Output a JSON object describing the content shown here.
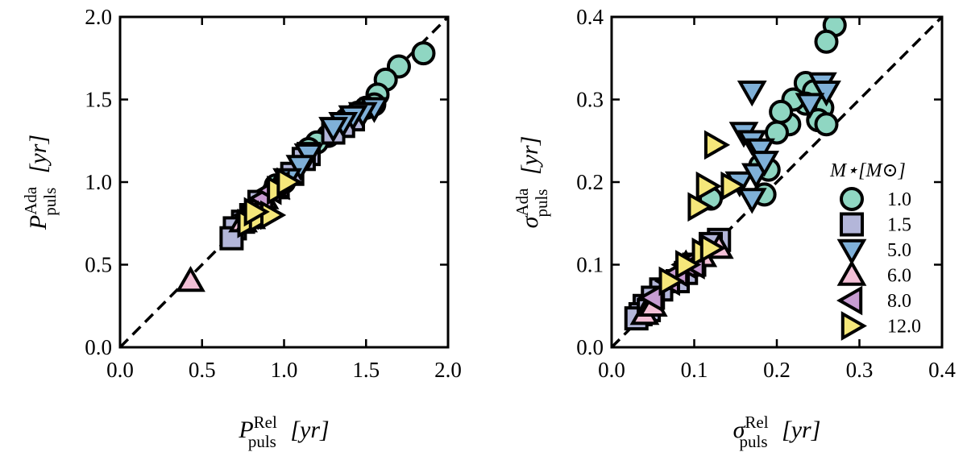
{
  "chart_data": [
    {
      "type": "scatter",
      "panel": "left",
      "xlim": [
        0.0,
        2.0
      ],
      "ylim": [
        0.0,
        2.0
      ],
      "xticks": [
        "0.0",
        "0.5",
        "1.0",
        "1.5",
        "2.0"
      ],
      "yticks": [
        "0.0",
        "0.5",
        "1.0",
        "1.5",
        "2.0"
      ],
      "xlabel": {
        "base": "P",
        "sup": "Rel",
        "sub": "puls",
        "unit": "[yr]"
      },
      "ylabel": {
        "base": "P",
        "sup": "Ada",
        "sub": "puls",
        "unit": "[yr]"
      },
      "reference_line": "y = x",
      "series": [
        {
          "name": "1.0",
          "marker": "circle",
          "color": "#8fd6c2",
          "points": [
            [
              1.85,
              1.78
            ],
            [
              1.7,
              1.7
            ],
            [
              1.62,
              1.62
            ],
            [
              1.57,
              1.53
            ],
            [
              1.55,
              1.47
            ],
            [
              1.5,
              1.45
            ],
            [
              1.45,
              1.42
            ],
            [
              1.38,
              1.38
            ],
            [
              1.32,
              1.32
            ],
            [
              1.27,
              1.28
            ],
            [
              1.2,
              1.24
            ],
            [
              1.15,
              1.2
            ],
            [
              1.0,
              1.0
            ],
            [
              0.95,
              0.98
            ]
          ]
        },
        {
          "name": "1.5",
          "marker": "square",
          "color": "#b3b6d9",
          "points": [
            [
              1.42,
              1.38
            ],
            [
              1.36,
              1.34
            ],
            [
              1.3,
              1.3
            ],
            [
              1.15,
              1.17
            ],
            [
              1.12,
              1.14
            ],
            [
              1.05,
              1.05
            ],
            [
              0.85,
              0.88
            ],
            [
              0.8,
              0.8
            ],
            [
              0.75,
              0.76
            ],
            [
              0.7,
              0.72
            ],
            [
              0.68,
              0.66
            ]
          ]
        },
        {
          "name": "5.0",
          "marker": "triangle-down",
          "color": "#7fb0d8",
          "points": [
            [
              1.55,
              1.45
            ],
            [
              1.48,
              1.42
            ],
            [
              1.42,
              1.4
            ],
            [
              1.36,
              1.36
            ],
            [
              1.3,
              1.33
            ],
            [
              1.15,
              1.17
            ],
            [
              1.1,
              1.1
            ],
            [
              1.02,
              1.02
            ]
          ]
        },
        {
          "name": "6.0",
          "marker": "triangle-up",
          "color": "#f2bfd6",
          "points": [
            [
              0.43,
              0.4
            ],
            [
              0.75,
              0.76
            ],
            [
              0.8,
              0.78
            ],
            [
              0.88,
              0.9
            ],
            [
              0.95,
              0.96
            ]
          ]
        },
        {
          "name": "8.0",
          "marker": "triangle-left",
          "color": "#c79cd2",
          "points": [
            [
              0.82,
              0.85
            ],
            [
              0.87,
              0.9
            ],
            [
              0.92,
              0.95
            ],
            [
              0.97,
              0.98
            ],
            [
              0.78,
              0.8
            ]
          ]
        },
        {
          "name": "12.0",
          "marker": "triangle-right",
          "color": "#f5e77a",
          "points": [
            [
              0.78,
              0.75
            ],
            [
              0.85,
              0.78
            ],
            [
              0.92,
              0.8
            ],
            [
              0.96,
              0.95
            ],
            [
              1.02,
              1.0
            ],
            [
              0.82,
              0.82
            ]
          ]
        }
      ]
    },
    {
      "type": "scatter",
      "panel": "right",
      "xlim": [
        0.0,
        0.4
      ],
      "ylim": [
        0.0,
        0.4
      ],
      "xticks": [
        "0.0",
        "0.1",
        "0.2",
        "0.3",
        "0.4"
      ],
      "yticks": [
        "0.0",
        "0.1",
        "0.2",
        "0.3",
        "0.4"
      ],
      "xlabel": {
        "base": "σ",
        "sup": "Rel",
        "sub": "puls",
        "unit": "[yr]"
      },
      "ylabel": {
        "base": "σ",
        "sup": "Ada",
        "sub": "puls",
        "unit": "[yr]"
      },
      "reference_line": "y = x",
      "legend": {
        "title": "M⋆[M⊙]",
        "entries": [
          "1.0",
          "1.5",
          "5.0",
          "6.0",
          "8.0",
          "12.0"
        ]
      },
      "series": [
        {
          "name": "1.0",
          "marker": "circle",
          "color": "#8fd6c2",
          "points": [
            [
              0.27,
              0.39
            ],
            [
              0.26,
              0.37
            ],
            [
              0.235,
              0.32
            ],
            [
              0.245,
              0.31
            ],
            [
              0.255,
              0.29
            ],
            [
              0.235,
              0.295
            ],
            [
              0.22,
              0.3
            ],
            [
              0.215,
              0.27
            ],
            [
              0.205,
              0.285
            ],
            [
              0.2,
              0.26
            ],
            [
              0.25,
              0.275
            ],
            [
              0.26,
              0.27
            ],
            [
              0.18,
              0.22
            ],
            [
              0.185,
              0.185
            ],
            [
              0.12,
              0.18
            ],
            [
              0.19,
              0.215
            ]
          ]
        },
        {
          "name": "1.5",
          "marker": "square",
          "color": "#b3b6d9",
          "points": [
            [
              0.13,
              0.13
            ],
            [
              0.12,
              0.125
            ],
            [
              0.1,
              0.1
            ],
            [
              0.09,
              0.09
            ],
            [
              0.08,
              0.08
            ],
            [
              0.06,
              0.07
            ],
            [
              0.05,
              0.06
            ],
            [
              0.04,
              0.05
            ],
            [
              0.035,
              0.04
            ],
            [
              0.03,
              0.035
            ],
            [
              0.045,
              0.045
            ]
          ]
        },
        {
          "name": "5.0",
          "marker": "triangle-down",
          "color": "#7fb0d8",
          "points": [
            [
              0.255,
              0.32
            ],
            [
              0.26,
              0.31
            ],
            [
              0.24,
              0.295
            ],
            [
              0.17,
              0.31
            ],
            [
              0.16,
              0.26
            ],
            [
              0.17,
              0.25
            ],
            [
              0.18,
              0.24
            ],
            [
              0.155,
              0.2
            ],
            [
              0.17,
              0.18
            ],
            [
              0.175,
              0.21
            ],
            [
              0.185,
              0.225
            ]
          ]
        },
        {
          "name": "6.0",
          "marker": "triangle-up",
          "color": "#f2bfd6",
          "points": [
            [
              0.04,
              0.04
            ],
            [
              0.05,
              0.05
            ],
            [
              0.13,
              0.12
            ],
            [
              0.11,
              0.11
            ],
            [
              0.09,
              0.1
            ]
          ]
        },
        {
          "name": "8.0",
          "marker": "triangle-left",
          "color": "#c79cd2",
          "points": [
            [
              0.07,
              0.08
            ],
            [
              0.08,
              0.09
            ],
            [
              0.09,
              0.1
            ],
            [
              0.1,
              0.1
            ],
            [
              0.05,
              0.06
            ]
          ]
        },
        {
          "name": "12.0",
          "marker": "triangle-right",
          "color": "#f5e77a",
          "points": [
            [
              0.125,
              0.245
            ],
            [
              0.115,
              0.195
            ],
            [
              0.145,
              0.195
            ],
            [
              0.105,
              0.17
            ],
            [
              0.11,
              0.115
            ],
            [
              0.12,
              0.12
            ],
            [
              0.09,
              0.1
            ],
            [
              0.07,
              0.08
            ]
          ]
        }
      ]
    }
  ]
}
